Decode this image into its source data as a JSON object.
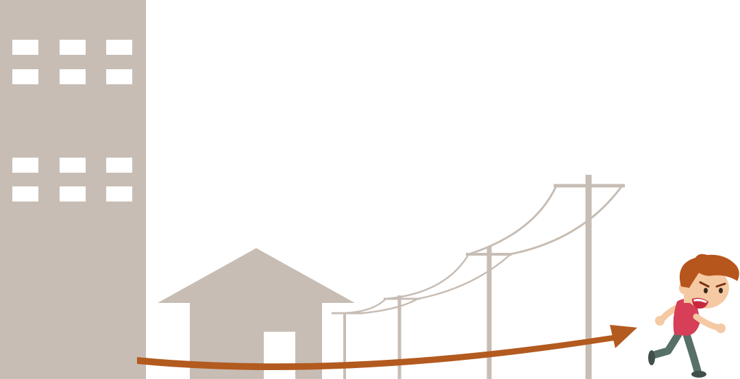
{
  "palette": {
    "background": "#ffffff",
    "building": "#c7bdb4",
    "window": "#ffffff",
    "power_line": "#c7bdb4",
    "arrow": "#b35a1f",
    "hair": "#b6551c",
    "skin": "#f5c9a3",
    "shirt": "#d63f57",
    "pants": "#587067",
    "shoe": "#3f4f4a",
    "mouth": "#c7283e"
  },
  "scene": {
    "elements": [
      "tall-building",
      "house",
      "power-poles",
      "motion-arrow",
      "running-boy"
    ],
    "window_rows": 4,
    "window_cols": 3,
    "pole_count": 4
  }
}
